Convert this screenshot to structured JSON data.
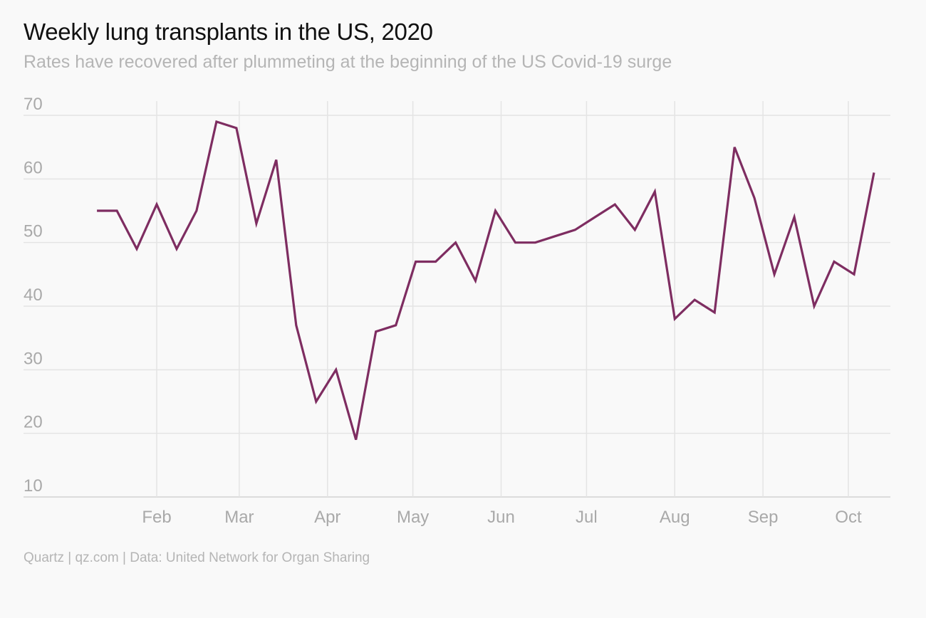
{
  "title": "Weekly lung transplants in the US, 2020",
  "subtitle": "Rates have recovered after plummeting at the beginning of the US Covid-19 surge",
  "source": "Quartz | qz.com | Data: United Network for Organ Sharing",
  "colors": {
    "line": "#7e2d61",
    "grid": "#e4e4e4",
    "axis": "#e0e0e0",
    "tick_text": "#a9a9a9",
    "background": "#f9f9f9"
  },
  "chart_data": {
    "type": "line",
    "title": "Weekly lung transplants in the US, 2020",
    "subtitle": "Rates have recovered after plummeting at the beginning of the US Covid-19 surge",
    "xlabel": "",
    "ylabel": "",
    "ylim": [
      10,
      70
    ],
    "yticks": [
      10,
      20,
      30,
      40,
      50,
      60,
      70
    ],
    "xlim": [
      "2020-01-01",
      "2020-10-21"
    ],
    "xticks": [
      {
        "label": "Feb",
        "date": "2020-02-01"
      },
      {
        "label": "Mar",
        "date": "2020-03-01"
      },
      {
        "label": "Apr",
        "date": "2020-04-01"
      },
      {
        "label": "May",
        "date": "2020-05-01"
      },
      {
        "label": "Jun",
        "date": "2020-06-01"
      },
      {
        "label": "Jul",
        "date": "2020-07-01"
      },
      {
        "label": "Aug",
        "date": "2020-08-01"
      },
      {
        "label": "Sep",
        "date": "2020-09-01"
      },
      {
        "label": "Oct",
        "date": "2020-10-01"
      }
    ],
    "grid": true,
    "series": [
      {
        "values": [
          {
            "x": "2020-01-11",
            "y": 55
          },
          {
            "x": "2020-01-18",
            "y": 55
          },
          {
            "x": "2020-01-25",
            "y": 49
          },
          {
            "x": "2020-02-01",
            "y": 56
          },
          {
            "x": "2020-02-08",
            "y": 49
          },
          {
            "x": "2020-02-15",
            "y": 55
          },
          {
            "x": "2020-02-22",
            "y": 69
          },
          {
            "x": "2020-02-29",
            "y": 68
          },
          {
            "x": "2020-03-07",
            "y": 53
          },
          {
            "x": "2020-03-14",
            "y": 63
          },
          {
            "x": "2020-03-21",
            "y": 37
          },
          {
            "x": "2020-03-28",
            "y": 25
          },
          {
            "x": "2020-04-04",
            "y": 30
          },
          {
            "x": "2020-04-11",
            "y": 19
          },
          {
            "x": "2020-04-18",
            "y": 36
          },
          {
            "x": "2020-04-25",
            "y": 37
          },
          {
            "x": "2020-05-02",
            "y": 47
          },
          {
            "x": "2020-05-09",
            "y": 47
          },
          {
            "x": "2020-05-16",
            "y": 50
          },
          {
            "x": "2020-05-23",
            "y": 44
          },
          {
            "x": "2020-05-30",
            "y": 55
          },
          {
            "x": "2020-06-06",
            "y": 50
          },
          {
            "x": "2020-06-13",
            "y": 50
          },
          {
            "x": "2020-06-20",
            "y": 51
          },
          {
            "x": "2020-06-27",
            "y": 52
          },
          {
            "x": "2020-07-04",
            "y": 54
          },
          {
            "x": "2020-07-11",
            "y": 56
          },
          {
            "x": "2020-07-18",
            "y": 52
          },
          {
            "x": "2020-07-25",
            "y": 58
          },
          {
            "x": "2020-08-01",
            "y": 38
          },
          {
            "x": "2020-08-08",
            "y": 41
          },
          {
            "x": "2020-08-15",
            "y": 39
          },
          {
            "x": "2020-08-22",
            "y": 65
          },
          {
            "x": "2020-08-29",
            "y": 57
          },
          {
            "x": "2020-09-05",
            "y": 45
          },
          {
            "x": "2020-09-12",
            "y": 54
          },
          {
            "x": "2020-09-19",
            "y": 40
          },
          {
            "x": "2020-09-26",
            "y": 47
          },
          {
            "x": "2020-10-03",
            "y": 45
          },
          {
            "x": "2020-10-10",
            "y": 61
          }
        ]
      }
    ]
  }
}
